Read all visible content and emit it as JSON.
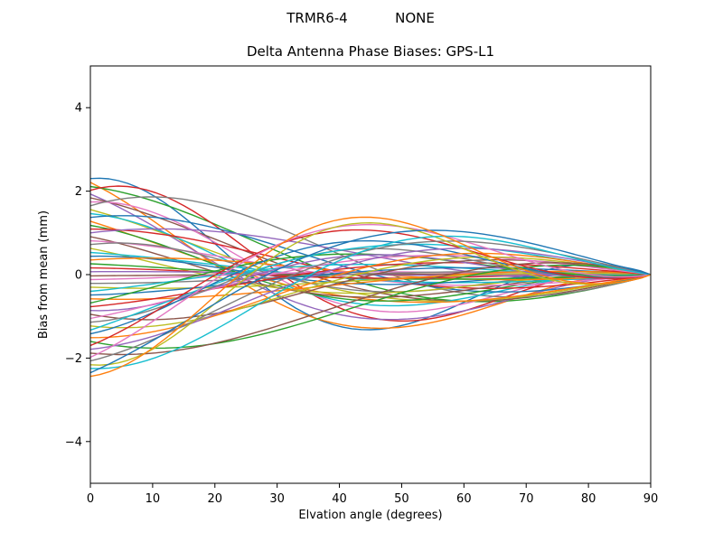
{
  "figure": {
    "background": "#ffffff",
    "suptitle_left": "TRMR6-4",
    "suptitle_right": "NONE"
  },
  "chart_data": {
    "type": "line",
    "title": "Delta Antenna Phase Biases: GPS-L1",
    "xlabel": "Elvation angle (degrees)",
    "ylabel": "Bias from mean (mm)",
    "xlim": [
      0,
      90
    ],
    "ylim": [
      -5,
      5
    ],
    "xticks": [
      0,
      10,
      20,
      30,
      40,
      50,
      60,
      70,
      80,
      90
    ],
    "yticks": [
      -4,
      -2,
      0,
      2,
      4
    ],
    "grid": false,
    "legend": null,
    "frame": "full-box",
    "n_series": 52,
    "line_width": 1.4,
    "color_cycle": [
      "#1f77b4",
      "#ff7f0e",
      "#2ca02c",
      "#d62728",
      "#9467bd",
      "#8c564b",
      "#e377c2",
      "#7f7f7f",
      "#bcbd22",
      "#17becf"
    ],
    "series_model": {
      "description": "Delta antenna phase bias curves, one per antenna/signal pair. Start values at 0 deg elevation spread between +2.3 and -2.44 mm, curves oscillate and cross between 0-50 deg forming upper (~+1.2 mm) and lower (~-1.0 mm) lobes near 50-60 deg, and all converge to exactly 0 mm at 90 deg.",
      "formula": "y(e) = start * cos(PI*e/period + phase)/cos(phase) * (1 - e/90)^0.8",
      "converge_point": [
        90,
        0
      ],
      "start_range_mm": [
        -2.44,
        2.3
      ],
      "envelope_exponent": 0.8,
      "sample_step_deg": 1.5
    },
    "series_format": [
      "start_mm",
      "period_deg",
      "phase_rad"
    ],
    "series": [
      [
        2.3,
        45,
        -0.22
      ],
      [
        2.21,
        62,
        0.44
      ],
      [
        2.11,
        79,
        0
      ],
      [
        2.02,
        48,
        -0.44
      ],
      [
        1.93,
        65,
        0.44
      ],
      [
        1.84,
        82,
        0.22
      ],
      [
        1.74,
        51,
        -0.22
      ],
      [
        1.65,
        68,
        -0.66
      ],
      [
        1.56,
        85,
        0.44
      ],
      [
        1.46,
        54,
        0
      ],
      [
        1.37,
        71,
        -0.44
      ],
      [
        1.28,
        88,
        0.66
      ],
      [
        1.18,
        57,
        0.22
      ],
      [
        1.09,
        74,
        -0.22
      ],
      [
        1.0,
        91,
        -0.66
      ],
      [
        0.91,
        60,
        0.44
      ],
      [
        0.81,
        77,
        0
      ],
      [
        0.72,
        46,
        -0.44
      ],
      [
        0.63,
        63,
        0.66
      ],
      [
        0.53,
        80,
        0.22
      ],
      [
        0.44,
        49,
        -0.22
      ],
      [
        0.35,
        66,
        -0.66
      ],
      [
        0.26,
        83,
        0.44
      ],
      [
        0.16,
        52,
        0
      ],
      [
        0.07,
        69,
        -0.44
      ],
      [
        -0.03,
        86,
        0.66
      ],
      [
        -0.12,
        55,
        0.22
      ],
      [
        -0.21,
        72,
        -0.22
      ],
      [
        -0.3,
        89,
        -0.66
      ],
      [
        -0.4,
        58,
        0.44
      ],
      [
        -0.49,
        75,
        0
      ],
      [
        -0.58,
        92,
        -0.44
      ],
      [
        -0.68,
        61,
        0.66
      ],
      [
        -0.77,
        78,
        0.22
      ],
      [
        -0.86,
        47,
        -0.22
      ],
      [
        -0.95,
        64,
        -0.66
      ],
      [
        -1.05,
        81,
        0.44
      ],
      [
        -1.14,
        50,
        0
      ],
      [
        -1.23,
        67,
        -0.44
      ],
      [
        -1.33,
        84,
        0.66
      ],
      [
        -1.42,
        53,
        0.22
      ],
      [
        -1.51,
        70,
        -0.22
      ],
      [
        -1.6,
        87,
        -0.66
      ],
      [
        -1.7,
        56,
        0.44
      ],
      [
        -1.79,
        73,
        0
      ],
      [
        -1.88,
        90,
        -0.44
      ],
      [
        -1.98,
        59,
        0.44
      ],
      [
        -2.07,
        76,
        0.22
      ],
      [
        -2.16,
        45,
        -0.22
      ],
      [
        -2.25,
        62,
        -0.22
      ],
      [
        -2.35,
        79,
        0.44
      ],
      [
        -2.44,
        48,
        0
      ]
    ]
  }
}
